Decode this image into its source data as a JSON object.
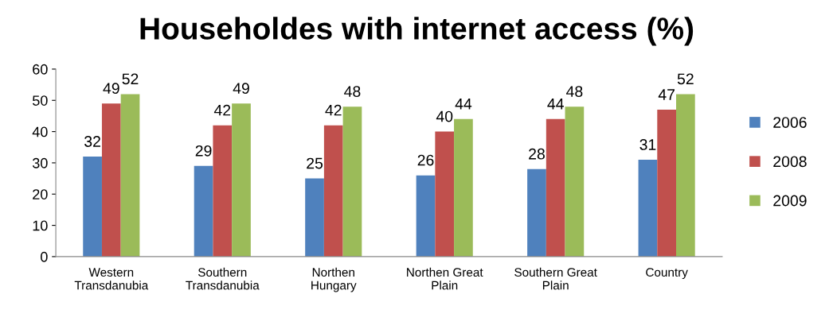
{
  "chart_data": {
    "type": "bar",
    "title": "Householdes with internet access (%)",
    "categories": [
      "Western\nTransdanubia",
      "Southern\nTransdanubia",
      "Northen\nHungary",
      "Northen Great\nPlain",
      "Southern Great\nPlain",
      "Country"
    ],
    "series": [
      {
        "name": "2006",
        "color": "#4f81bd",
        "values": [
          32,
          29,
          25,
          26,
          28,
          31
        ]
      },
      {
        "name": "2008",
        "color": "#c0504d",
        "values": [
          49,
          42,
          42,
          40,
          44,
          47
        ]
      },
      {
        "name": "2009",
        "color": "#9bbb59",
        "values": [
          52,
          49,
          48,
          44,
          48,
          52
        ]
      }
    ],
    "ylim": [
      0,
      60
    ],
    "yticks": [
      0,
      10,
      20,
      30,
      40,
      50,
      60
    ],
    "grid": false,
    "legend": "right",
    "data_labels": true
  }
}
